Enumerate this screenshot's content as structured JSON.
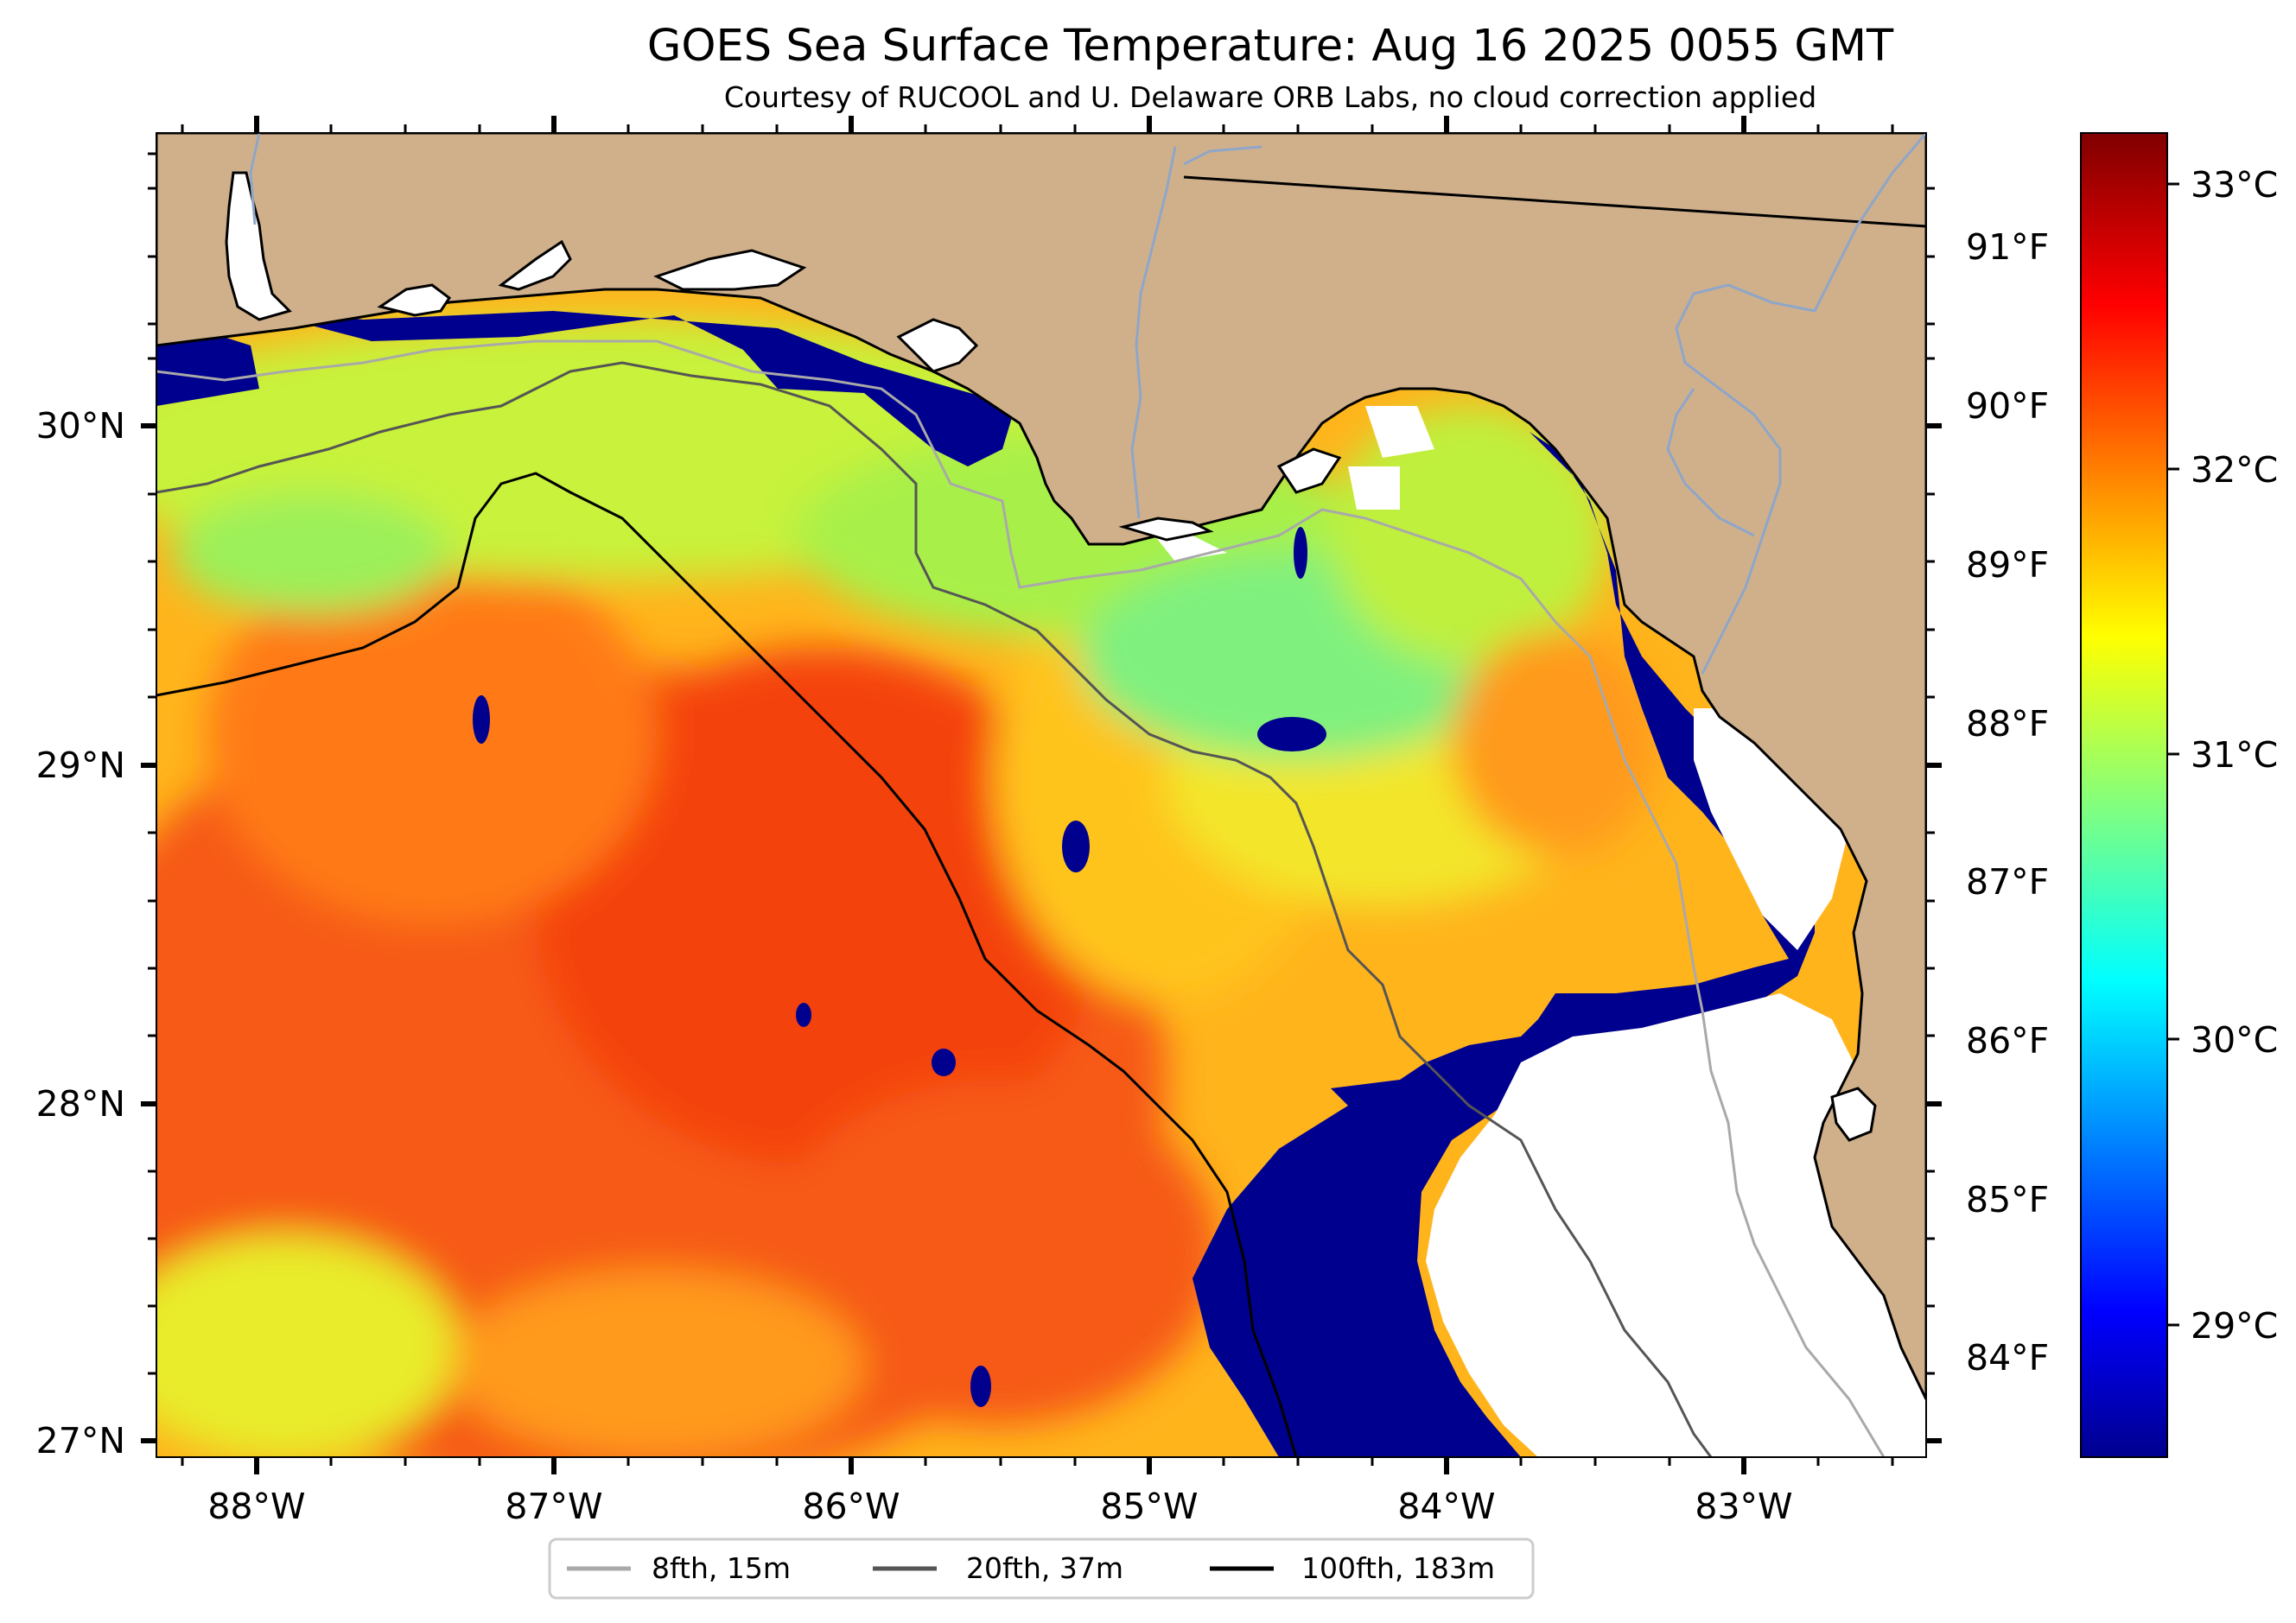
{
  "figure": {
    "title": "GOES Sea Surface Temperature: Aug 16 2025 0055 GMT",
    "subtitle": "Courtesy of RUCOOL and U. Delaware ORB Labs, no cloud correction applied"
  },
  "map": {
    "lon_ticks": [
      "88°W",
      "87°W",
      "86°W",
      "85°W",
      "84°W",
      "83°W"
    ],
    "lat_ticks": [
      "30°N",
      "29°N",
      "28°N",
      "27°N"
    ],
    "fahrenheit_ticks": [
      "91°F",
      "90°F",
      "89°F",
      "88°F",
      "87°F",
      "86°F",
      "85°F",
      "84°F"
    ],
    "extent": {
      "lon_min": -88.34,
      "lon_max": -82.38,
      "lat_min": 26.93,
      "lat_max": 30.85
    },
    "colors": {
      "land": "#cfb08b",
      "cloud_no_data": "#ffffff",
      "cold_water": "#00008e",
      "coastline": "#000000",
      "rivers": "#8fa6c8"
    }
  },
  "colorbar": {
    "label_ticks": [
      "33°C",
      "32°C",
      "31°C",
      "30°C",
      "29°C"
    ],
    "colormap": "jet",
    "range_c": [
      28.5,
      33.3
    ]
  },
  "legend": {
    "items": [
      {
        "label": "8fth, 15m",
        "color": "#a9a9a9"
      },
      {
        "label": "20fth, 37m",
        "color": "#555555"
      },
      {
        "label": "100fth, 183m",
        "color": "#000000"
      }
    ]
  },
  "chart_data": {
    "type": "heatmap",
    "title": "GOES Sea Surface Temperature: Aug 16 2025 0055 GMT",
    "subtitle": "Courtesy of RUCOOL and U. Delaware ORB Labs, no cloud correction applied",
    "x_ticks": [
      "88°W",
      "87°W",
      "86°W",
      "85°W",
      "84°W",
      "83°W"
    ],
    "y_ticks": [
      "30°N",
      "29°N",
      "28°N",
      "27°N"
    ],
    "colorbar_ticks_c": [
      29,
      30,
      31,
      32,
      33
    ],
    "colorbar_ticks_f": [
      84,
      85,
      86,
      87,
      88,
      89,
      90,
      91
    ],
    "clim_c": [
      28.5,
      33.3
    ],
    "series": [
      {
        "name": "8fth, 15m"
      },
      {
        "name": "20fth, 37m"
      },
      {
        "name": "100fth, 183m"
      }
    ]
  }
}
